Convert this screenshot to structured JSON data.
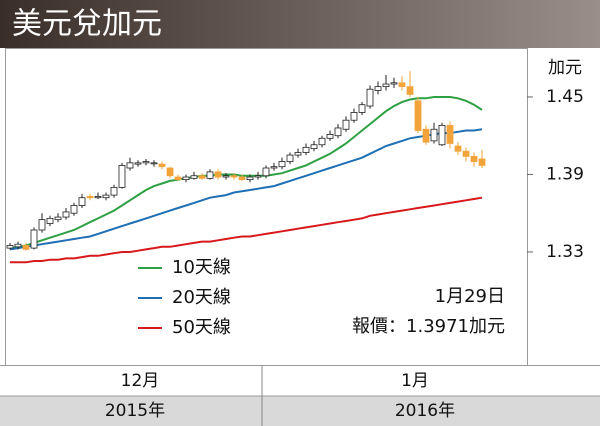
{
  "chart_data": {
    "type": "candlestick",
    "title": "美元兌加元",
    "y_axis_label": "加元",
    "categories": [
      null,
      null,
      null,
      null,
      null,
      null,
      null,
      null,
      null,
      null,
      null,
      null,
      null,
      null,
      null,
      null,
      null,
      null,
      null,
      null,
      null,
      null,
      null,
      null,
      null,
      null,
      null,
      null,
      null,
      null,
      null,
      null,
      null,
      null,
      null,
      null,
      null,
      null,
      null,
      null,
      null,
      null,
      null,
      null,
      null,
      null,
      null,
      null,
      null,
      null,
      null,
      null,
      null,
      null,
      null,
      null,
      null,
      null,
      null,
      null
    ],
    "open": [
      1.333,
      1.334,
      1.335,
      1.333,
      1.347,
      1.352,
      1.355,
      1.357,
      1.36,
      1.366,
      1.373,
      1.372,
      1.372,
      1.374,
      1.38,
      1.395,
      1.398,
      1.399,
      1.399,
      1.398,
      1.395,
      1.388,
      1.386,
      1.387,
      1.389,
      1.387,
      1.392,
      1.388,
      1.389,
      1.388,
      1.386,
      1.388,
      1.389,
      1.395,
      1.396,
      1.4,
      1.405,
      1.407,
      1.41,
      1.413,
      1.418,
      1.42,
      1.425,
      1.432,
      1.438,
      1.443,
      1.455,
      1.458,
      1.46,
      1.461,
      1.458,
      1.447,
      1.425,
      1.416,
      1.413,
      1.428,
      1.412,
      1.408,
      1.404,
      1.402
    ],
    "high": [
      1.337,
      1.338,
      1.337,
      1.349,
      1.36,
      1.358,
      1.36,
      1.364,
      1.368,
      1.375,
      1.375,
      1.376,
      1.376,
      1.382,
      1.399,
      1.403,
      1.401,
      1.402,
      1.401,
      1.4,
      1.396,
      1.39,
      1.39,
      1.392,
      1.391,
      1.394,
      1.394,
      1.391,
      1.391,
      1.39,
      1.39,
      1.392,
      1.397,
      1.399,
      1.403,
      1.407,
      1.41,
      1.414,
      1.416,
      1.42,
      1.424,
      1.429,
      1.435,
      1.441,
      1.446,
      1.459,
      1.462,
      1.467,
      1.465,
      1.466,
      1.47,
      1.45,
      1.428,
      1.43,
      1.43,
      1.431,
      1.415,
      1.411,
      1.407,
      1.409
    ],
    "low": [
      1.332,
      1.332,
      1.331,
      1.332,
      1.345,
      1.35,
      1.353,
      1.355,
      1.358,
      1.364,
      1.37,
      1.371,
      1.37,
      1.372,
      1.379,
      1.393,
      1.396,
      1.397,
      1.396,
      1.394,
      1.387,
      1.385,
      1.384,
      1.386,
      1.386,
      1.386,
      1.386,
      1.386,
      1.386,
      1.385,
      1.384,
      1.386,
      1.387,
      1.393,
      1.394,
      1.398,
      1.403,
      1.405,
      1.408,
      1.411,
      1.416,
      1.418,
      1.423,
      1.43,
      1.436,
      1.441,
      1.452,
      1.455,
      1.457,
      1.455,
      1.45,
      1.422,
      1.413,
      1.414,
      1.412,
      1.41,
      1.405,
      1.4,
      1.396,
      1.395
    ],
    "close": [
      1.335,
      1.336,
      1.332,
      1.347,
      1.355,
      1.356,
      1.357,
      1.361,
      1.366,
      1.372,
      1.372,
      1.373,
      1.374,
      1.38,
      1.397,
      1.399,
      1.399,
      1.4,
      1.399,
      1.396,
      1.389,
      1.386,
      1.388,
      1.389,
      1.387,
      1.392,
      1.388,
      1.389,
      1.388,
      1.386,
      1.388,
      1.389,
      1.395,
      1.396,
      1.4,
      1.405,
      1.407,
      1.411,
      1.413,
      1.418,
      1.421,
      1.426,
      1.432,
      1.438,
      1.444,
      1.456,
      1.458,
      1.46,
      1.461,
      1.458,
      1.452,
      1.424,
      1.415,
      1.425,
      1.428,
      1.414,
      1.408,
      1.404,
      1.4,
      1.397
    ],
    "up_color": "#ffffff",
    "down_color": "#f2a33a",
    "series": [
      {
        "name": "10天線",
        "color": "#2ea043",
        "values": [
          1.333,
          1.334,
          1.335,
          1.337,
          1.339,
          1.341,
          1.343,
          1.345,
          1.347,
          1.35,
          1.353,
          1.356,
          1.359,
          1.362,
          1.366,
          1.37,
          1.374,
          1.378,
          1.381,
          1.383,
          1.385,
          1.386,
          1.387,
          1.388,
          1.389,
          1.389,
          1.39,
          1.39,
          1.39,
          1.389,
          1.389,
          1.389,
          1.389,
          1.39,
          1.391,
          1.393,
          1.395,
          1.397,
          1.4,
          1.403,
          1.406,
          1.41,
          1.414,
          1.419,
          1.424,
          1.429,
          1.434,
          1.439,
          1.443,
          1.446,
          1.448,
          1.449,
          1.449,
          1.45,
          1.45,
          1.45,
          1.449,
          1.447,
          1.444,
          1.44
        ]
      },
      {
        "name": "20天線",
        "color": "#1f6fb5",
        "values": [
          1.332,
          1.333,
          1.334,
          1.335,
          1.336,
          1.337,
          1.338,
          1.339,
          1.34,
          1.341,
          1.342,
          1.344,
          1.346,
          1.348,
          1.35,
          1.352,
          1.354,
          1.356,
          1.358,
          1.36,
          1.362,
          1.364,
          1.366,
          1.368,
          1.37,
          1.372,
          1.373,
          1.374,
          1.376,
          1.377,
          1.378,
          1.379,
          1.38,
          1.381,
          1.383,
          1.385,
          1.387,
          1.389,
          1.391,
          1.393,
          1.395,
          1.397,
          1.399,
          1.401,
          1.403,
          1.406,
          1.409,
          1.412,
          1.414,
          1.416,
          1.418,
          1.419,
          1.42,
          1.421,
          1.422,
          1.422,
          1.423,
          1.424,
          1.424,
          1.425
        ]
      },
      {
        "name": "50天線",
        "color": "#d7191c",
        "values": [
          1.322,
          1.322,
          1.322,
          1.323,
          1.323,
          1.324,
          1.324,
          1.325,
          1.325,
          1.326,
          1.327,
          1.327,
          1.328,
          1.329,
          1.33,
          1.33,
          1.331,
          1.332,
          1.333,
          1.334,
          1.334,
          1.335,
          1.336,
          1.337,
          1.338,
          1.338,
          1.339,
          1.34,
          1.341,
          1.342,
          1.342,
          1.343,
          1.344,
          1.345,
          1.346,
          1.347,
          1.348,
          1.349,
          1.35,
          1.351,
          1.352,
          1.353,
          1.354,
          1.355,
          1.356,
          1.358,
          1.359,
          1.36,
          1.361,
          1.362,
          1.363,
          1.364,
          1.365,
          1.366,
          1.367,
          1.368,
          1.369,
          1.37,
          1.371,
          1.372
        ]
      }
    ],
    "ylim": [
      1.24,
      1.49
    ],
    "yticks": [
      1.33,
      1.39,
      1.45
    ],
    "month_labels": [
      "12月",
      "1月"
    ],
    "year_labels": [
      "2015年",
      "2016年"
    ],
    "date_label": "1月29日",
    "price_label": "報價：1.3971加元"
  }
}
